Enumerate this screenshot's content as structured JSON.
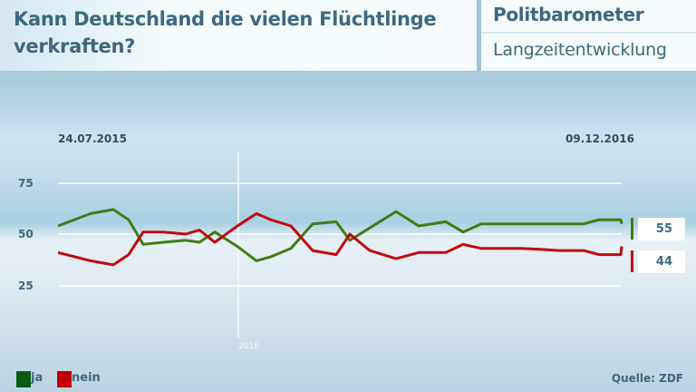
{
  "header": {
    "title": "Kann Deutschland die vielen Flüchtlinge verkraften?",
    "brand": "Politbarometer",
    "subtitle": "Langzeitentwicklung"
  },
  "dates": {
    "start": "24.07.2015",
    "end": "09.12.2016"
  },
  "year_marker": "2016",
  "latest": {
    "ja": "55",
    "nein": "44"
  },
  "legend": {
    "ja": "ja",
    "nein": "nein"
  },
  "source": "Quelle: ZDF",
  "colors": {
    "ja": "#3f7d16",
    "nein": "#c0090f",
    "legend_ja": "#0b5a16",
    "legend_nein": "#c00000",
    "text": "#3d6880"
  },
  "chart_data": {
    "type": "line",
    "title": "Kann Deutschland die vielen Flüchtlinge verkraften?",
    "subtitle": "Politbarometer – Langzeitentwicklung",
    "xlabel": "",
    "ylabel": "",
    "x_range": [
      "24.07.2015",
      "09.12.2016"
    ],
    "x_marker": "2016",
    "ylim": [
      25,
      75
    ],
    "yticks": [
      25,
      50,
      75
    ],
    "grid": true,
    "legend_position": "bottom-left",
    "x": [
      0,
      36,
      61,
      78,
      94,
      116,
      141,
      156,
      173,
      198,
      219,
      235,
      257,
      281,
      307,
      322,
      344,
      373,
      398,
      428,
      447,
      467,
      491,
      511,
      534,
      553,
      580,
      597,
      621,
      622
    ],
    "series": [
      {
        "name": "ja",
        "values": [
          54,
          60,
          62,
          57,
          45,
          46,
          47,
          46,
          51,
          44,
          37,
          39,
          43,
          55,
          56,
          47,
          53,
          61,
          54,
          56,
          51,
          55,
          55,
          55,
          55,
          55,
          55,
          57,
          57,
          55
        ]
      },
      {
        "name": "nein",
        "values": [
          41,
          37,
          35,
          40,
          51,
          51,
          50,
          52,
          46,
          54,
          60,
          57,
          54,
          42,
          40,
          50,
          42,
          38,
          41,
          41,
          45,
          43,
          43,
          43,
          42.5,
          42,
          42,
          40,
          40,
          44
        ]
      }
    ],
    "latest_values": {
      "ja": 55,
      "nein": 44
    },
    "source": "Quelle: ZDF"
  }
}
